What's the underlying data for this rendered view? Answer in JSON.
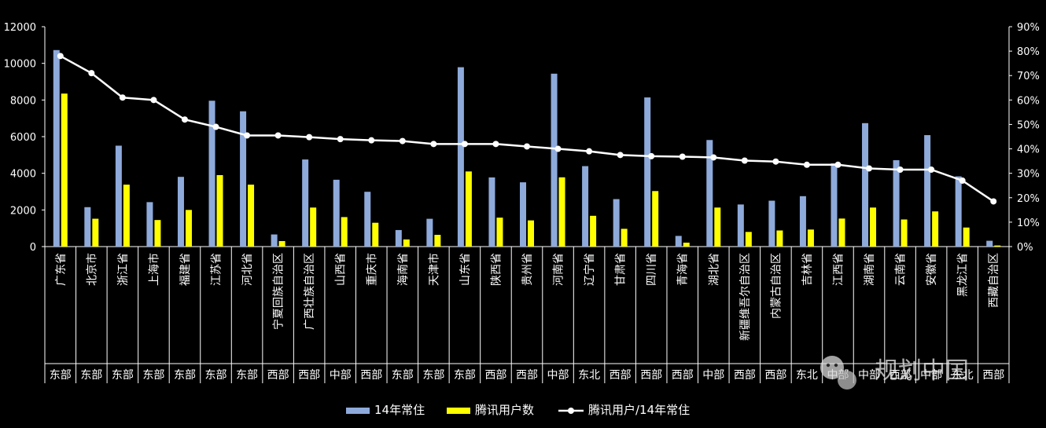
{
  "chart_data": {
    "type": "bar",
    "title": "",
    "categories": [
      "广东省",
      "北京市",
      "浙江省",
      "上海市",
      "福建省",
      "江苏省",
      "河北省",
      "宁夏回族自治区",
      "广西壮族自治区",
      "山西省",
      "重庆市",
      "海南省",
      "天津市",
      "山东省",
      "陕西省",
      "贵州省",
      "河南省",
      "辽宁省",
      "甘肃省",
      "四川省",
      "青海省",
      "湖北省",
      "新疆维吾尔自治区",
      "内蒙古自治区",
      "吉林省",
      "江西省",
      "湖南省",
      "云南省",
      "安徽省",
      "黑龙江省",
      "西藏自治区"
    ],
    "regions": [
      "东部",
      "东部",
      "东部",
      "东部",
      "东部",
      "东部",
      "东部",
      "西部",
      "西部",
      "中部",
      "西部",
      "东部",
      "东部",
      "东部",
      "西部",
      "西部",
      "中部",
      "东北",
      "西部",
      "西部",
      "西部",
      "中部",
      "西部",
      "西部",
      "东北",
      "中部",
      "中部",
      "西部",
      "中部",
      "东北",
      "西部"
    ],
    "series": [
      {
        "name": "14年常住",
        "type": "bar",
        "axis": "left",
        "color": "#8EAADB",
        "values": [
          10724,
          2152,
          5508,
          2426,
          3806,
          7960,
          7384,
          662,
          4754,
          3648,
          2991,
          903,
          1517,
          9789,
          3775,
          3508,
          9436,
          4391,
          2591,
          8140,
          583,
          5816,
          2298,
          2505,
          2752,
          4542,
          6737,
          4714,
          6083,
          3833,
          318
        ]
      },
      {
        "name": "腾讯用户数",
        "type": "bar",
        "axis": "right-scaled",
        "color": "#FFFF00",
        "values": [
          8350,
          1520,
          3380,
          1450,
          2000,
          3900,
          3380,
          300,
          2130,
          1610,
          1300,
          390,
          640,
          4100,
          1580,
          1430,
          3780,
          1680,
          970,
          3030,
          215,
          2130,
          800,
          880,
          930,
          1530,
          2130,
          1480,
          1920,
          1040,
          60
        ]
      },
      {
        "name": "腾讯用户/14年常住",
        "type": "line",
        "axis": "right",
        "color": "#FFFFFF",
        "values": [
          0.78,
          0.71,
          0.61,
          0.6,
          0.52,
          0.49,
          0.455,
          0.455,
          0.448,
          0.44,
          0.435,
          0.432,
          0.42,
          0.42,
          0.42,
          0.41,
          0.4,
          0.39,
          0.375,
          0.37,
          0.368,
          0.365,
          0.352,
          0.348,
          0.335,
          0.335,
          0.32,
          0.315,
          0.315,
          0.27,
          0.185
        ]
      }
    ],
    "y_left": {
      "min": 0,
      "max": 12000,
      "ticks": [
        "0",
        "2000",
        "4000",
        "6000",
        "8000",
        "10000",
        "12000"
      ]
    },
    "y_right": {
      "min": 0,
      "max": 0.9,
      "ticks": [
        "0%",
        "10%",
        "20%",
        "30%",
        "40%",
        "50%",
        "60%",
        "70%",
        "80%",
        "90%"
      ]
    },
    "grid": false,
    "legend": {
      "position": "bottom",
      "entries": [
        "14年常住",
        "腾讯用户数",
        "腾讯用户/14年常住"
      ]
    }
  },
  "watermark": {
    "text": "规划中国",
    "icon": "wechat-icon"
  }
}
